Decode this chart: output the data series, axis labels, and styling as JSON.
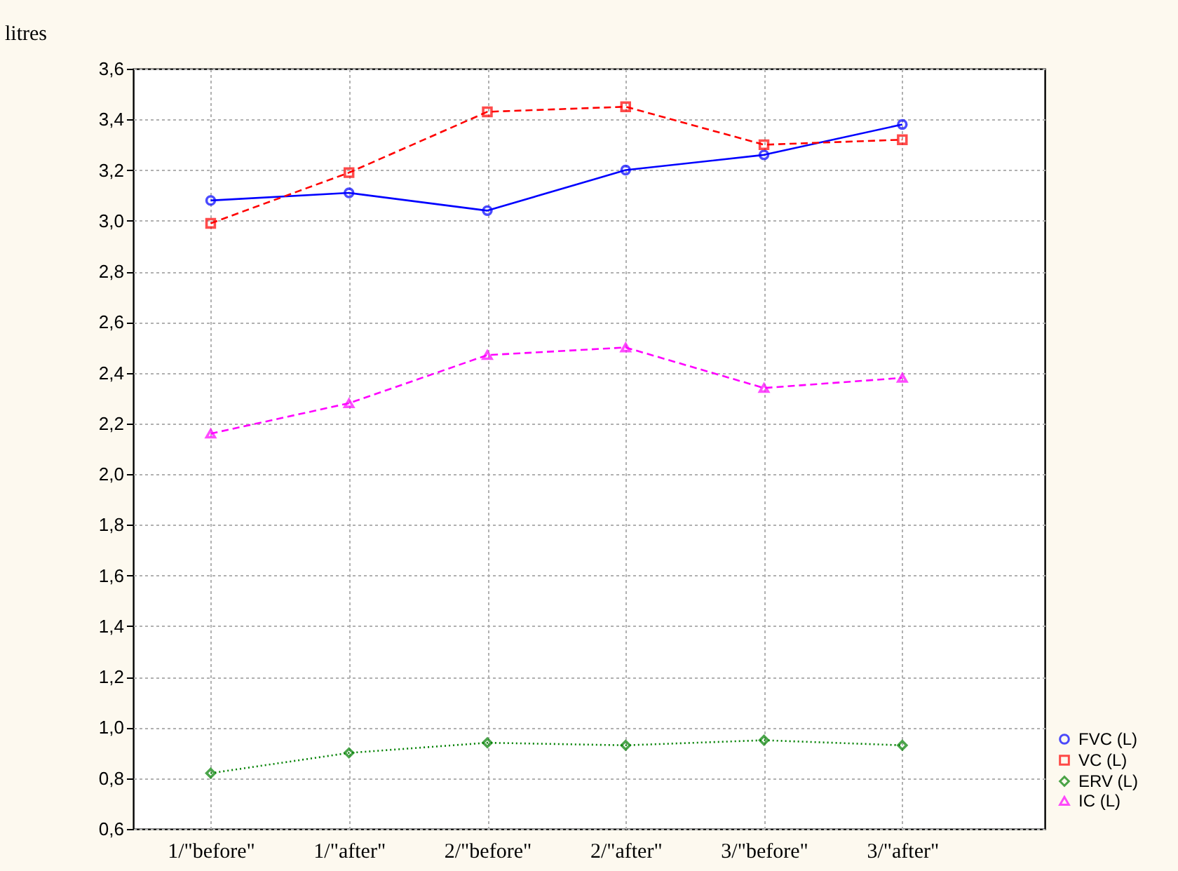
{
  "chart_data": {
    "type": "line",
    "ylabel": "litres",
    "categories": [
      "1/\"before\"",
      "1/\"after\"",
      "2/\"before\"",
      "2/\"after\"",
      "3/\"before\"",
      "3/\"after\""
    ],
    "series": [
      {
        "name": "FVC (L)",
        "color": "#0000ff",
        "marker": "circle",
        "line_style": "solid",
        "values": [
          3.08,
          3.11,
          3.04,
          3.2,
          3.26,
          3.38
        ]
      },
      {
        "name": "VC (L)",
        "color": "#ff0000",
        "marker": "square",
        "line_style": "dashed",
        "values": [
          2.99,
          3.19,
          3.43,
          3.45,
          3.3,
          3.32
        ]
      },
      {
        "name": "ERV (L)",
        "color": "#008000",
        "marker": "diamond",
        "line_style": "dotted",
        "values": [
          0.82,
          0.9,
          0.94,
          0.93,
          0.95,
          0.93
        ]
      },
      {
        "name": "IC (L)",
        "color": "#ff00ff",
        "marker": "triangle",
        "line_style": "dashed",
        "values": [
          2.16,
          2.28,
          2.47,
          2.5,
          2.34,
          2.38
        ]
      }
    ],
    "ylim": [
      0.6,
      3.6
    ],
    "yticks": [
      {
        "value": 0.6,
        "label": "0,6"
      },
      {
        "value": 0.8,
        "label": "0,8"
      },
      {
        "value": 1.0,
        "label": "1,0"
      },
      {
        "value": 1.2,
        "label": "1,2"
      },
      {
        "value": 1.4,
        "label": "1,4"
      },
      {
        "value": 1.6,
        "label": "1,6"
      },
      {
        "value": 1.8,
        "label": "1,8"
      },
      {
        "value": 2.0,
        "label": "2,0"
      },
      {
        "value": 2.2,
        "label": "2,2"
      },
      {
        "value": 2.4,
        "label": "2,4"
      },
      {
        "value": 2.6,
        "label": "2,6"
      },
      {
        "value": 2.8,
        "label": "2,8"
      },
      {
        "value": 3.0,
        "label": "3,0"
      },
      {
        "value": 3.2,
        "label": "3,2"
      },
      {
        "value": 3.4,
        "label": "3,4"
      },
      {
        "value": 3.6,
        "label": "3,6"
      }
    ],
    "grid": true,
    "legend": "bottom right"
  }
}
